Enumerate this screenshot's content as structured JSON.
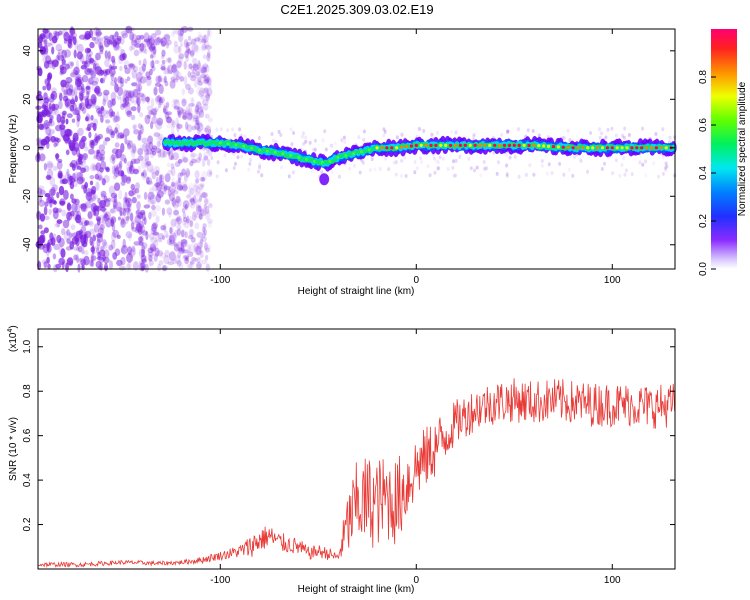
{
  "title": "C2E1.2025.309.03.02.E19",
  "colors": {
    "line": "#e83a36",
    "spectrogram_point": "#7a1fe0",
    "ridge_colors": [
      "#6a00ff",
      "#0060ff",
      "#00d8ff",
      "#10e070",
      "#40ff30",
      "#f0ff00",
      "#ff8000",
      "#ff0040"
    ]
  },
  "chart_data": [
    {
      "type": "heatmap",
      "title": "C2E1.2025.309.03.02.E19",
      "xlabel": "Height of straight line (km)",
      "ylabel": "Frequency (Hz)",
      "xlim": [
        -193,
        132
      ],
      "ylim": [
        -50,
        49
      ],
      "xticks": [
        -100,
        0,
        100
      ],
      "yticks": [
        -40,
        -20,
        0,
        20,
        40
      ],
      "noise_region_x": [
        -193,
        -105
      ],
      "signal_start_x": -128,
      "ridge": {
        "x": [
          -128,
          -115,
          -100,
          -90,
          -80,
          -70,
          -60,
          -55,
          -50,
          -45,
          -40,
          -35,
          -30,
          -25,
          -20,
          -10,
          0,
          20,
          40,
          60,
          80,
          100,
          132
        ],
        "y": [
          2,
          2,
          2,
          1,
          -1,
          -2,
          -4,
          -5,
          -6,
          -6,
          -4,
          -3,
          -2,
          -1,
          0,
          0,
          1,
          1,
          1,
          1,
          0,
          0,
          0
        ]
      },
      "colorbar": {
        "label": "Normalized spectral amplitude",
        "range": [
          0,
          1
        ],
        "ticks": [
          "0.0",
          "0.2",
          "0.4",
          "0.6",
          "0.8"
        ]
      }
    },
    {
      "type": "line",
      "xlabel": "Height of straight line (km)",
      "ylabel": "SNR (10 * v/v)",
      "multiplier": "(x10^4)",
      "multiplier_base": "(x10",
      "multiplier_exp": "4",
      "multiplier_close": ")",
      "xlim": [
        -193,
        132
      ],
      "ylim": [
        0,
        1.08
      ],
      "xticks": [
        -100,
        0,
        100
      ],
      "yticks": [
        0.2,
        0.4,
        0.6,
        0.8,
        1.0
      ],
      "yticklabels": [
        "0.2",
        "0.4",
        "0.6",
        "0.8",
        "1.0"
      ],
      "series": [
        {
          "name": "SNR",
          "x": [
            -193,
            -170,
            -150,
            -130,
            -120,
            -110,
            -100,
            -90,
            -85,
            -80,
            -75,
            -70,
            -65,
            -60,
            -55,
            -50,
            -45,
            -40,
            -35,
            -30,
            -25,
            -20,
            -15,
            -10,
            -5,
            0,
            5,
            10,
            15,
            20,
            30,
            40,
            50,
            60,
            70,
            80,
            90,
            100,
            110,
            120,
            132
          ],
          "mean": [
            0.02,
            0.02,
            0.03,
            0.025,
            0.03,
            0.04,
            0.06,
            0.08,
            0.1,
            0.13,
            0.15,
            0.12,
            0.11,
            0.1,
            0.07,
            0.08,
            0.07,
            0.05,
            0.2,
            0.3,
            0.3,
            0.3,
            0.32,
            0.3,
            0.38,
            0.46,
            0.5,
            0.55,
            0.6,
            0.66,
            0.72,
            0.75,
            0.76,
            0.75,
            0.76,
            0.75,
            0.74,
            0.74,
            0.74,
            0.73,
            0.74
          ],
          "spread": [
            0.01,
            0.01,
            0.01,
            0.01,
            0.01,
            0.015,
            0.02,
            0.03,
            0.05,
            0.06,
            0.05,
            0.05,
            0.04,
            0.04,
            0.03,
            0.03,
            0.03,
            0.02,
            0.15,
            0.2,
            0.22,
            0.2,
            0.2,
            0.2,
            0.18,
            0.15,
            0.14,
            0.14,
            0.12,
            0.1,
            0.1,
            0.1,
            0.1,
            0.1,
            0.1,
            0.1,
            0.1,
            0.1,
            0.1,
            0.1,
            0.1
          ]
        }
      ]
    }
  ]
}
